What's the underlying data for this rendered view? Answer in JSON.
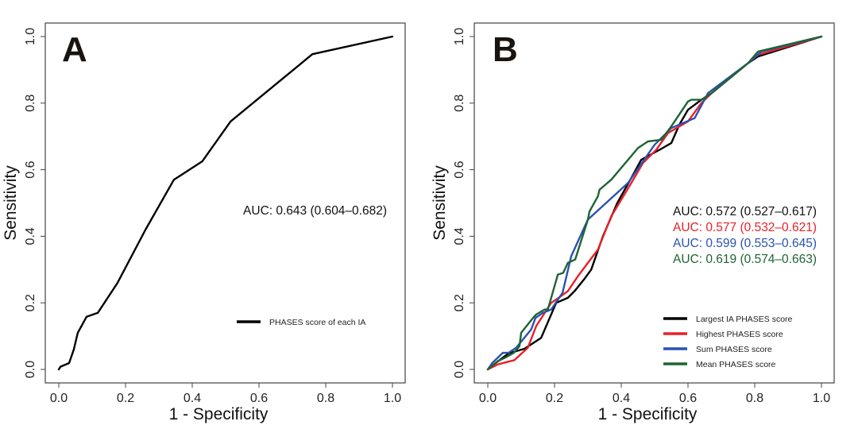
{
  "chart_data": [
    {
      "type": "line",
      "panel_label": "A",
      "xlabel": "1 - Specificity",
      "ylabel": "Sensitivity",
      "xlim": [
        0,
        1
      ],
      "ylim": [
        0,
        1
      ],
      "xticks": [
        "0.0",
        "0.2",
        "0.4",
        "0.6",
        "0.8",
        "1.0"
      ],
      "yticks": [
        "0.0",
        "0.2",
        "0.4",
        "0.6",
        "0.8",
        "1.0"
      ],
      "grid": false,
      "legend_position": "bottom-right",
      "annotations": [
        {
          "text": "AUC: 0.643 (0.604–0.682)",
          "color": "#111111"
        }
      ],
      "series": [
        {
          "name": "PHASES score of each IA",
          "color": "#000000",
          "x": [
            0,
            0.005,
            0.031,
            0.045,
            0.057,
            0.083,
            0.117,
            0.176,
            0.26,
            0.345,
            0.43,
            0.515,
            0.76,
            1.0
          ],
          "y": [
            0,
            0.008,
            0.019,
            0.06,
            0.11,
            0.158,
            0.17,
            0.26,
            0.42,
            0.57,
            0.625,
            0.745,
            0.947,
            1.0
          ]
        }
      ]
    },
    {
      "type": "line",
      "panel_label": "B",
      "xlabel": "1 - Specificity",
      "ylabel": "Sensitivity",
      "xlim": [
        0,
        1
      ],
      "ylim": [
        0,
        1
      ],
      "xticks": [
        "0.0",
        "0.2",
        "0.4",
        "0.6",
        "0.8",
        "1.0"
      ],
      "yticks": [
        "0.0",
        "0.2",
        "0.4",
        "0.6",
        "0.8",
        "1.0"
      ],
      "grid": false,
      "legend_position": "bottom-right",
      "annotations": [
        {
          "text": "AUC: 0.572 (0.527–0.617)",
          "color": "#111111"
        },
        {
          "text": "AUC: 0.577 (0.532–0.621)",
          "color": "#e8202a"
        },
        {
          "text": "AUC: 0.599 (0.553–0.645)",
          "color": "#2a52b0"
        },
        {
          "text": "AUC: 0.619 (0.574–0.663)",
          "color": "#1e6432"
        }
      ],
      "series": [
        {
          "name": "Largest IA PHASES score",
          "color": "#000000",
          "x": [
            0,
            0.014,
            0.062,
            0.11,
            0.16,
            0.205,
            0.24,
            0.26,
            0.288,
            0.31,
            0.345,
            0.388,
            0.43,
            0.46,
            0.515,
            0.55,
            0.574,
            0.6,
            0.64,
            0.671,
            0.78,
            0.81,
            1.0
          ],
          "y": [
            0,
            0.012,
            0.048,
            0.062,
            0.095,
            0.2,
            0.215,
            0.235,
            0.27,
            0.3,
            0.4,
            0.5,
            0.575,
            0.63,
            0.66,
            0.68,
            0.735,
            0.78,
            0.81,
            0.83,
            0.92,
            0.94,
            1.0
          ]
        },
        {
          "name": "Highest PHASES score",
          "color": "#e8202a",
          "x": [
            0,
            0.03,
            0.08,
            0.12,
            0.145,
            0.19,
            0.205,
            0.24,
            0.27,
            0.3,
            0.33,
            0.37,
            0.43,
            0.465,
            0.505,
            0.54,
            0.6,
            0.64,
            0.671,
            0.78,
            0.81,
            1.0
          ],
          "y": [
            0,
            0.015,
            0.028,
            0.065,
            0.13,
            0.2,
            0.21,
            0.235,
            0.28,
            0.32,
            0.36,
            0.46,
            0.56,
            0.62,
            0.66,
            0.71,
            0.745,
            0.8,
            0.83,
            0.92,
            0.945,
            1.0
          ]
        },
        {
          "name": "Sum PHASES score",
          "color": "#2a52b0",
          "x": [
            0,
            0.014,
            0.045,
            0.062,
            0.085,
            0.13,
            0.143,
            0.165,
            0.19,
            0.224,
            0.25,
            0.3,
            0.42,
            0.5,
            0.55,
            0.62,
            0.66,
            0.78,
            0.82,
            1.0
          ],
          "y": [
            0,
            0.02,
            0.05,
            0.05,
            0.065,
            0.12,
            0.155,
            0.17,
            0.18,
            0.23,
            0.34,
            0.45,
            0.56,
            0.675,
            0.725,
            0.755,
            0.83,
            0.92,
            0.955,
            1.0
          ]
        },
        {
          "name": "Mean PHASES score",
          "color": "#1e6432",
          "x": [
            0,
            0.03,
            0.052,
            0.078,
            0.095,
            0.1,
            0.124,
            0.14,
            0.145,
            0.17,
            0.18,
            0.21,
            0.226,
            0.24,
            0.262,
            0.3,
            0.305,
            0.33,
            0.335,
            0.37,
            0.45,
            0.48,
            0.52,
            0.55,
            0.6,
            0.61,
            0.64,
            0.671,
            0.78,
            0.81,
            1.0
          ],
          "y": [
            0,
            0.025,
            0.035,
            0.05,
            0.07,
            0.11,
            0.14,
            0.16,
            0.165,
            0.18,
            0.18,
            0.285,
            0.29,
            0.32,
            0.33,
            0.45,
            0.475,
            0.52,
            0.54,
            0.57,
            0.665,
            0.685,
            0.69,
            0.73,
            0.805,
            0.81,
            0.81,
            0.83,
            0.92,
            0.955,
            1.0
          ]
        }
      ]
    }
  ]
}
